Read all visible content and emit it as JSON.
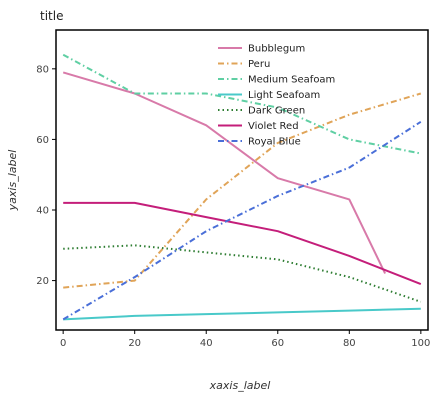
{
  "chart_data": {
    "type": "line",
    "title": "title",
    "xlabel": "xaxis_label",
    "ylabel": "yaxis_label",
    "xlim": [
      -2,
      102
    ],
    "ylim": [
      6,
      91
    ],
    "x_ticks": [
      0,
      20,
      40,
      60,
      80,
      100
    ],
    "y_ticks": [
      20,
      40,
      60,
      80
    ],
    "grid": false,
    "legend_position": "top-right",
    "series": [
      {
        "name": "Bubblegum",
        "color": "#d87aa9",
        "x": [
          0,
          20,
          40,
          60,
          80,
          90
        ],
        "y": [
          79,
          73,
          64,
          49,
          43,
          22
        ]
      },
      {
        "name": "Peru",
        "color": "#e0a458",
        "x": [
          0,
          20,
          40,
          60,
          80,
          100
        ],
        "y": [
          18,
          20,
          43,
          59,
          67,
          73
        ]
      },
      {
        "name": "Medium Seafoam",
        "color": "#5fcfa3",
        "x": [
          0,
          20,
          40,
          60,
          80,
          100
        ],
        "y": [
          84,
          73,
          73,
          69,
          60,
          56
        ]
      },
      {
        "name": "Light Seafoam",
        "color": "#49c9c9",
        "x": [
          0,
          20,
          40,
          60,
          80,
          100
        ],
        "y": [
          9,
          10,
          10.5,
          11,
          11.5,
          12
        ]
      },
      {
        "name": "Dark Green",
        "color": "#2e7d32",
        "x": [
          0,
          20,
          40,
          60,
          80,
          100
        ],
        "y": [
          29,
          30,
          28,
          26,
          21,
          14
        ]
      },
      {
        "name": "Violet Red",
        "color": "#c41e7a",
        "x": [
          0,
          20,
          40,
          60,
          80,
          100
        ],
        "y": [
          42,
          42,
          38,
          34,
          27,
          19
        ]
      },
      {
        "name": "Royal Blue",
        "color": "#4a6fd8",
        "x": [
          0,
          20,
          40,
          60,
          80,
          100
        ],
        "y": [
          9,
          21,
          34,
          44,
          52,
          65
        ]
      }
    ]
  }
}
